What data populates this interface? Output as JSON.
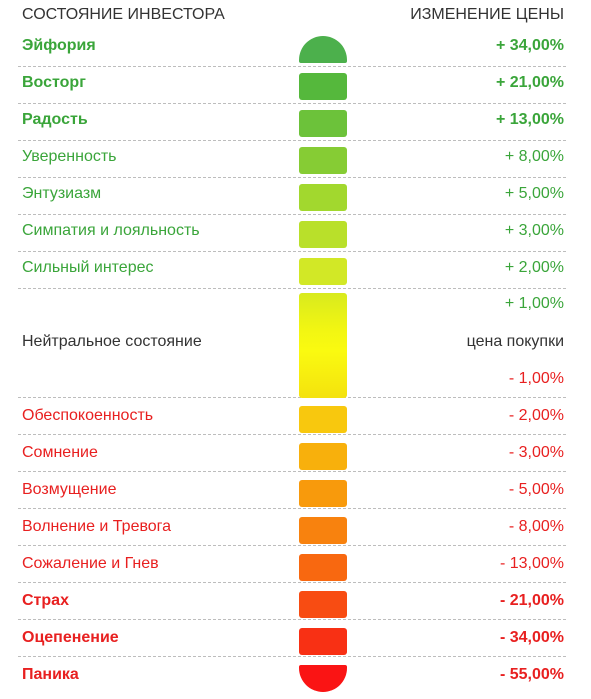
{
  "header": {
    "left": "СОСТОЯНИЕ ИНВЕСТОРА",
    "right": "ИЗМЕНЕНИЕ ЦЕНЫ"
  },
  "colors": {
    "positive_text": "#3aa53a",
    "negative_text": "#e82020",
    "neutral_text": "#333333"
  },
  "rows_top": [
    {
      "label": "Эйфория",
      "value": "+ 34,00%",
      "bold": true,
      "color": "#4cb04c"
    },
    {
      "label": "Восторг",
      "value": "+ 21,00%",
      "bold": true,
      "color": "#55b83c"
    },
    {
      "label": "Радость",
      "value": "+ 13,00%",
      "bold": true,
      "color": "#6cc23a"
    },
    {
      "label": "Уверенность",
      "value": "+ 8,00%",
      "bold": false,
      "color": "#86cc34"
    },
    {
      "label": "Энтузиазм",
      "value": "+ 5,00%",
      "bold": false,
      "color": "#a2d82e"
    },
    {
      "label": "Симпатия и лояльность",
      "value": "+ 3,00%",
      "bold": false,
      "color": "#b9e02a"
    },
    {
      "label": "Сильный интерес",
      "value": "+ 2,00%",
      "bold": false,
      "color": "#d2e826"
    }
  ],
  "neutral": {
    "value_above": "+ 1,00%",
    "label": "Нейтральное состояние",
    "value_mid": "цена покупки",
    "value_below": "- 1,00%"
  },
  "rows_bottom": [
    {
      "label": "Обеспокоенность",
      "value": "- 2,00%",
      "bold": false,
      "color": "#f8c80e"
    },
    {
      "label": "Сомнение",
      "value": "- 3,00%",
      "bold": false,
      "color": "#f8b00c"
    },
    {
      "label": "Возмущение",
      "value": "- 5,00%",
      "bold": false,
      "color": "#f89a0c"
    },
    {
      "label": "Волнение и Тревога",
      "value": "- 8,00%",
      "bold": false,
      "color": "#f8820e"
    },
    {
      "label": "Сожаление и Гнев",
      "value": "- 13,00%",
      "bold": false,
      "color": "#f86810"
    },
    {
      "label": "Страх",
      "value": "- 21,00%",
      "bold": true,
      "color": "#f84c12"
    },
    {
      "label": "Оцепенение",
      "value": "- 34,00%",
      "bold": true,
      "color": "#f83014"
    },
    {
      "label": "Паника",
      "value": "- 55,00%",
      "bold": true,
      "color": "#fa1414"
    }
  ]
}
